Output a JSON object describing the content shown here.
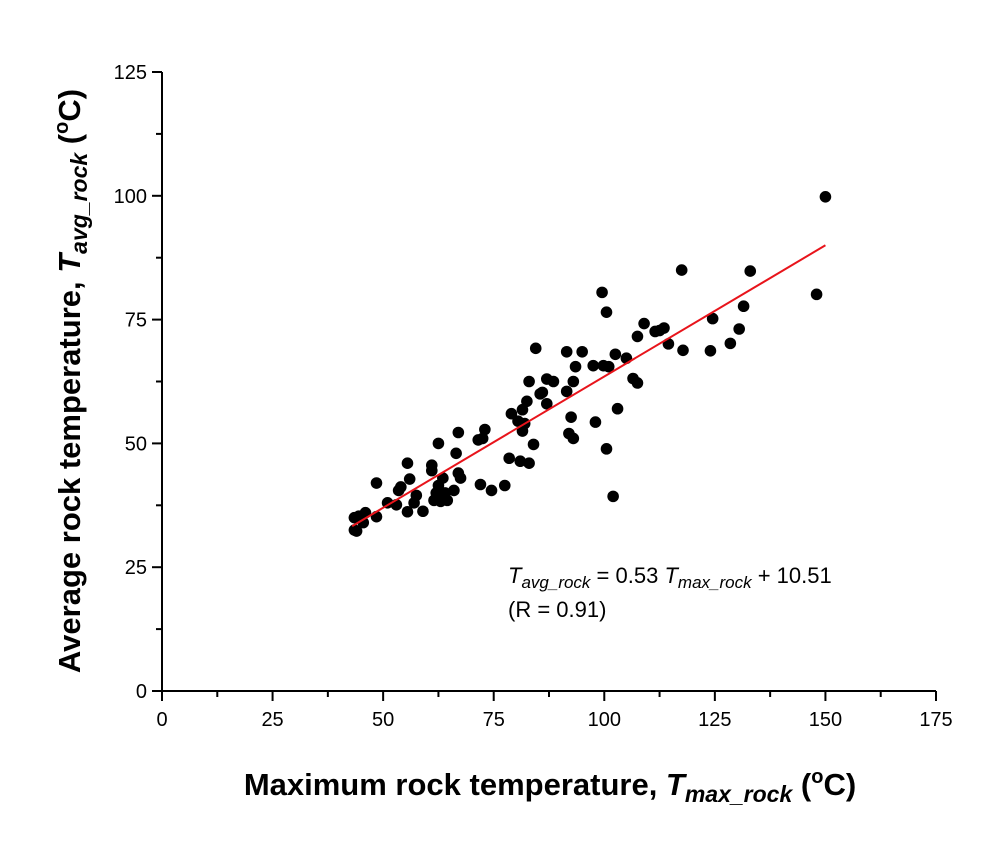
{
  "chart_data": {
    "type": "scatter",
    "xlabel": {
      "prefix": "Maximum rock temperature, ",
      "symbol": "T",
      "subscript": "max_rock",
      "unit_open": " (",
      "unit_sup": "o",
      "unit_close": "C)"
    },
    "ylabel": {
      "prefix": "Average rock temperature, ",
      "symbol": "T",
      "subscript": "avg_rock",
      "unit_open": " (",
      "unit_sup": "o",
      "unit_close": "C)"
    },
    "xlim": [
      0,
      175
    ],
    "ylim": [
      0,
      125
    ],
    "x_ticks": [
      0,
      25,
      50,
      75,
      100,
      125,
      150,
      175
    ],
    "y_ticks": [
      0,
      25,
      50,
      75,
      100,
      125
    ],
    "x_tick_labels": [
      "0",
      "25",
      "50",
      "75",
      "100",
      "125",
      "150",
      "175"
    ],
    "y_tick_labels": [
      "0",
      "25",
      "50",
      "75",
      "100",
      "125"
    ],
    "grid": false,
    "point_color": "#000000",
    "fit_color": "#e8141b",
    "points": [
      [
        43.5,
        32.5
      ],
      [
        43.5,
        35
      ],
      [
        44,
        32.3
      ],
      [
        44.5,
        35.3
      ],
      [
        45.5,
        34
      ],
      [
        46,
        36
      ],
      [
        48.5,
        42
      ],
      [
        48.5,
        35.2
      ],
      [
        51,
        38
      ],
      [
        53,
        37.6
      ],
      [
        53.5,
        40.5
      ],
      [
        54,
        41.2
      ],
      [
        55.5,
        46
      ],
      [
        55.5,
        36.2
      ],
      [
        56,
        42.8
      ],
      [
        57,
        38
      ],
      [
        57.5,
        39.5
      ],
      [
        59,
        36.3
      ],
      [
        61,
        44.5
      ],
      [
        61,
        45.6
      ],
      [
        61.5,
        38.5
      ],
      [
        62,
        40
      ],
      [
        62.5,
        50
      ],
      [
        62.5,
        41.5
      ],
      [
        63,
        38.3
      ],
      [
        63.5,
        43
      ],
      [
        64,
        40
      ],
      [
        64.5,
        38.5
      ],
      [
        66,
        40.5
      ],
      [
        66.5,
        48
      ],
      [
        67,
        52.2
      ],
      [
        67,
        44
      ],
      [
        67.5,
        43
      ],
      [
        71.5,
        50.7
      ],
      [
        72,
        41.7
      ],
      [
        72.5,
        51
      ],
      [
        73,
        52.8
      ],
      [
        74.5,
        40.5
      ],
      [
        77.5,
        41.5
      ],
      [
        78.5,
        47
      ],
      [
        79,
        56
      ],
      [
        80.5,
        54.5
      ],
      [
        81,
        46.4
      ],
      [
        81.5,
        52.5
      ],
      [
        81.5,
        56.8
      ],
      [
        82,
        54
      ],
      [
        82.5,
        58.5
      ],
      [
        83,
        62.5
      ],
      [
        83,
        46
      ],
      [
        84,
        49.8
      ],
      [
        84.5,
        69.2
      ],
      [
        85.5,
        60
      ],
      [
        86,
        60.3
      ],
      [
        87,
        58
      ],
      [
        87,
        63
      ],
      [
        88.5,
        62.5
      ],
      [
        91.5,
        68.5
      ],
      [
        91.5,
        60.5
      ],
      [
        92,
        52
      ],
      [
        92.5,
        55.3
      ],
      [
        93,
        62.5
      ],
      [
        93,
        51
      ],
      [
        93.5,
        65.5
      ],
      [
        95,
        68.5
      ],
      [
        97.5,
        65.7
      ],
      [
        98,
        54.3
      ],
      [
        99.5,
        80.5
      ],
      [
        99.8,
        65.7
      ],
      [
        100.5,
        48.9
      ],
      [
        100.5,
        76.5
      ],
      [
        101,
        65.5
      ],
      [
        102,
        39.3
      ],
      [
        102.5,
        68
      ],
      [
        103,
        57
      ],
      [
        105,
        67.2
      ],
      [
        106.5,
        63.1
      ],
      [
        107.5,
        71.6
      ],
      [
        107.5,
        62.2
      ],
      [
        109,
        74.2
      ],
      [
        111.5,
        72.6
      ],
      [
        112.5,
        72.8
      ],
      [
        113.5,
        73.3
      ],
      [
        114.5,
        70.1
      ],
      [
        117.5,
        85
      ],
      [
        117.8,
        68.8
      ],
      [
        124,
        68.7
      ],
      [
        124.5,
        75.2
      ],
      [
        128.5,
        70.2
      ],
      [
        130.5,
        73.1
      ],
      [
        131.5,
        77.7
      ],
      [
        133,
        84.8
      ],
      [
        148,
        80.1
      ],
      [
        150,
        99.8
      ]
    ],
    "fit": {
      "slope": 0.53,
      "intercept": 10.51,
      "x_range": [
        43,
        150
      ]
    },
    "annotation": {
      "lhs_symbol": "T",
      "lhs_sub": "avg_rock",
      "mid": " = 0.53 ",
      "rhs_symbol": "T",
      "rhs_sub": "max_rock",
      "tail": " + 10.51",
      "r_text": "(R = 0.91)"
    }
  }
}
